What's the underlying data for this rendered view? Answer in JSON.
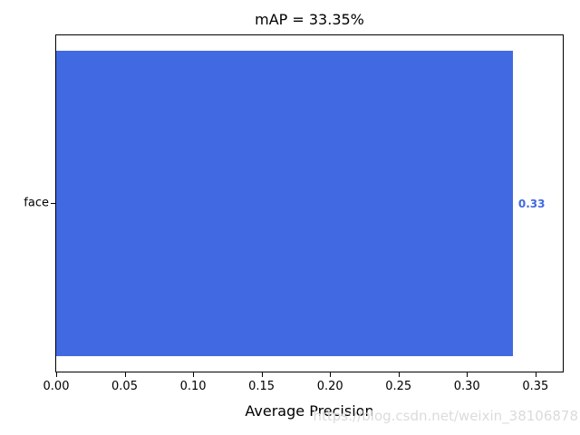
{
  "chart_data": {
    "type": "bar",
    "orientation": "horizontal",
    "title": "mAP = 33.35%",
    "xlabel": "Average Precision",
    "ylabel": "",
    "categories": [
      "face"
    ],
    "values": [
      0.3335
    ],
    "value_labels": [
      "0.33"
    ],
    "bar_color": "#4169E1",
    "value_label_color": "#4169E1",
    "xlim": [
      0,
      0.37
    ],
    "xticks": [
      0,
      0.05,
      0.1,
      0.15,
      0.2,
      0.25,
      0.3,
      0.35
    ],
    "xtick_labels": [
      "0.00",
      "0.05",
      "0.10",
      "0.15",
      "0.20",
      "0.25",
      "0.30",
      "0.35"
    ],
    "grid": false,
    "legend": null
  },
  "watermark": {
    "text": "https://blog.csdn.net/weixin_38106878",
    "color": "#dbdbdb"
  }
}
